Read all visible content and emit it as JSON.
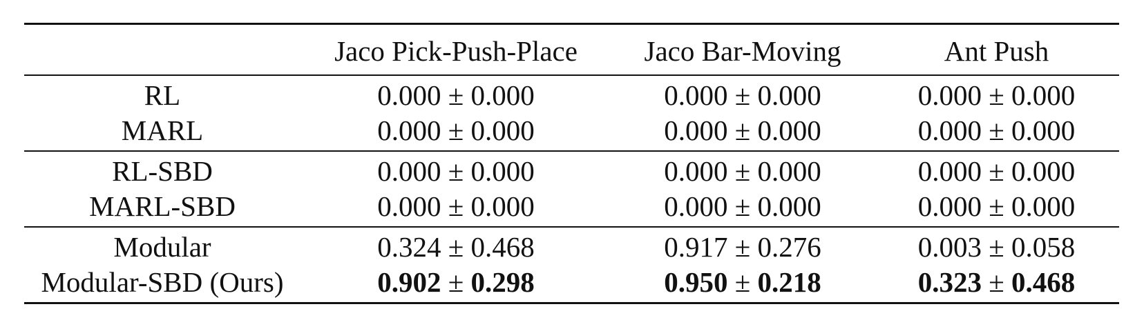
{
  "table": {
    "columns": [
      "",
      "Jaco Pick-Push-Place",
      "Jaco Bar-Moving",
      "Ant Push"
    ],
    "groups": [
      [
        {
          "method": "RL",
          "cells": [
            {
              "mean": "0.000",
              "std": "0.000",
              "bold": false
            },
            {
              "mean": "0.000",
              "std": "0.000",
              "bold": false
            },
            {
              "mean": "0.000",
              "std": "0.000",
              "bold": false
            }
          ]
        },
        {
          "method": "MARL",
          "cells": [
            {
              "mean": "0.000",
              "std": "0.000",
              "bold": false
            },
            {
              "mean": "0.000",
              "std": "0.000",
              "bold": false
            },
            {
              "mean": "0.000",
              "std": "0.000",
              "bold": false
            }
          ]
        }
      ],
      [
        {
          "method": "RL-SBD",
          "cells": [
            {
              "mean": "0.000",
              "std": "0.000",
              "bold": false
            },
            {
              "mean": "0.000",
              "std": "0.000",
              "bold": false
            },
            {
              "mean": "0.000",
              "std": "0.000",
              "bold": false
            }
          ]
        },
        {
          "method": "MARL-SBD",
          "cells": [
            {
              "mean": "0.000",
              "std": "0.000",
              "bold": false
            },
            {
              "mean": "0.000",
              "std": "0.000",
              "bold": false
            },
            {
              "mean": "0.000",
              "std": "0.000",
              "bold": false
            }
          ]
        }
      ],
      [
        {
          "method": "Modular",
          "cells": [
            {
              "mean": "0.324",
              "std": "0.468",
              "bold": false
            },
            {
              "mean": "0.917",
              "std": "0.276",
              "bold": false
            },
            {
              "mean": "0.003",
              "std": "0.058",
              "bold": false
            }
          ]
        },
        {
          "method": "Modular-SBD (Ours)",
          "cells": [
            {
              "mean": "0.902",
              "std": "0.298",
              "bold": true
            },
            {
              "mean": "0.950",
              "std": "0.218",
              "bold": true
            },
            {
              "mean": "0.323",
              "std": "0.468",
              "bold": true
            }
          ]
        }
      ]
    ],
    "pm_symbol": "±"
  }
}
